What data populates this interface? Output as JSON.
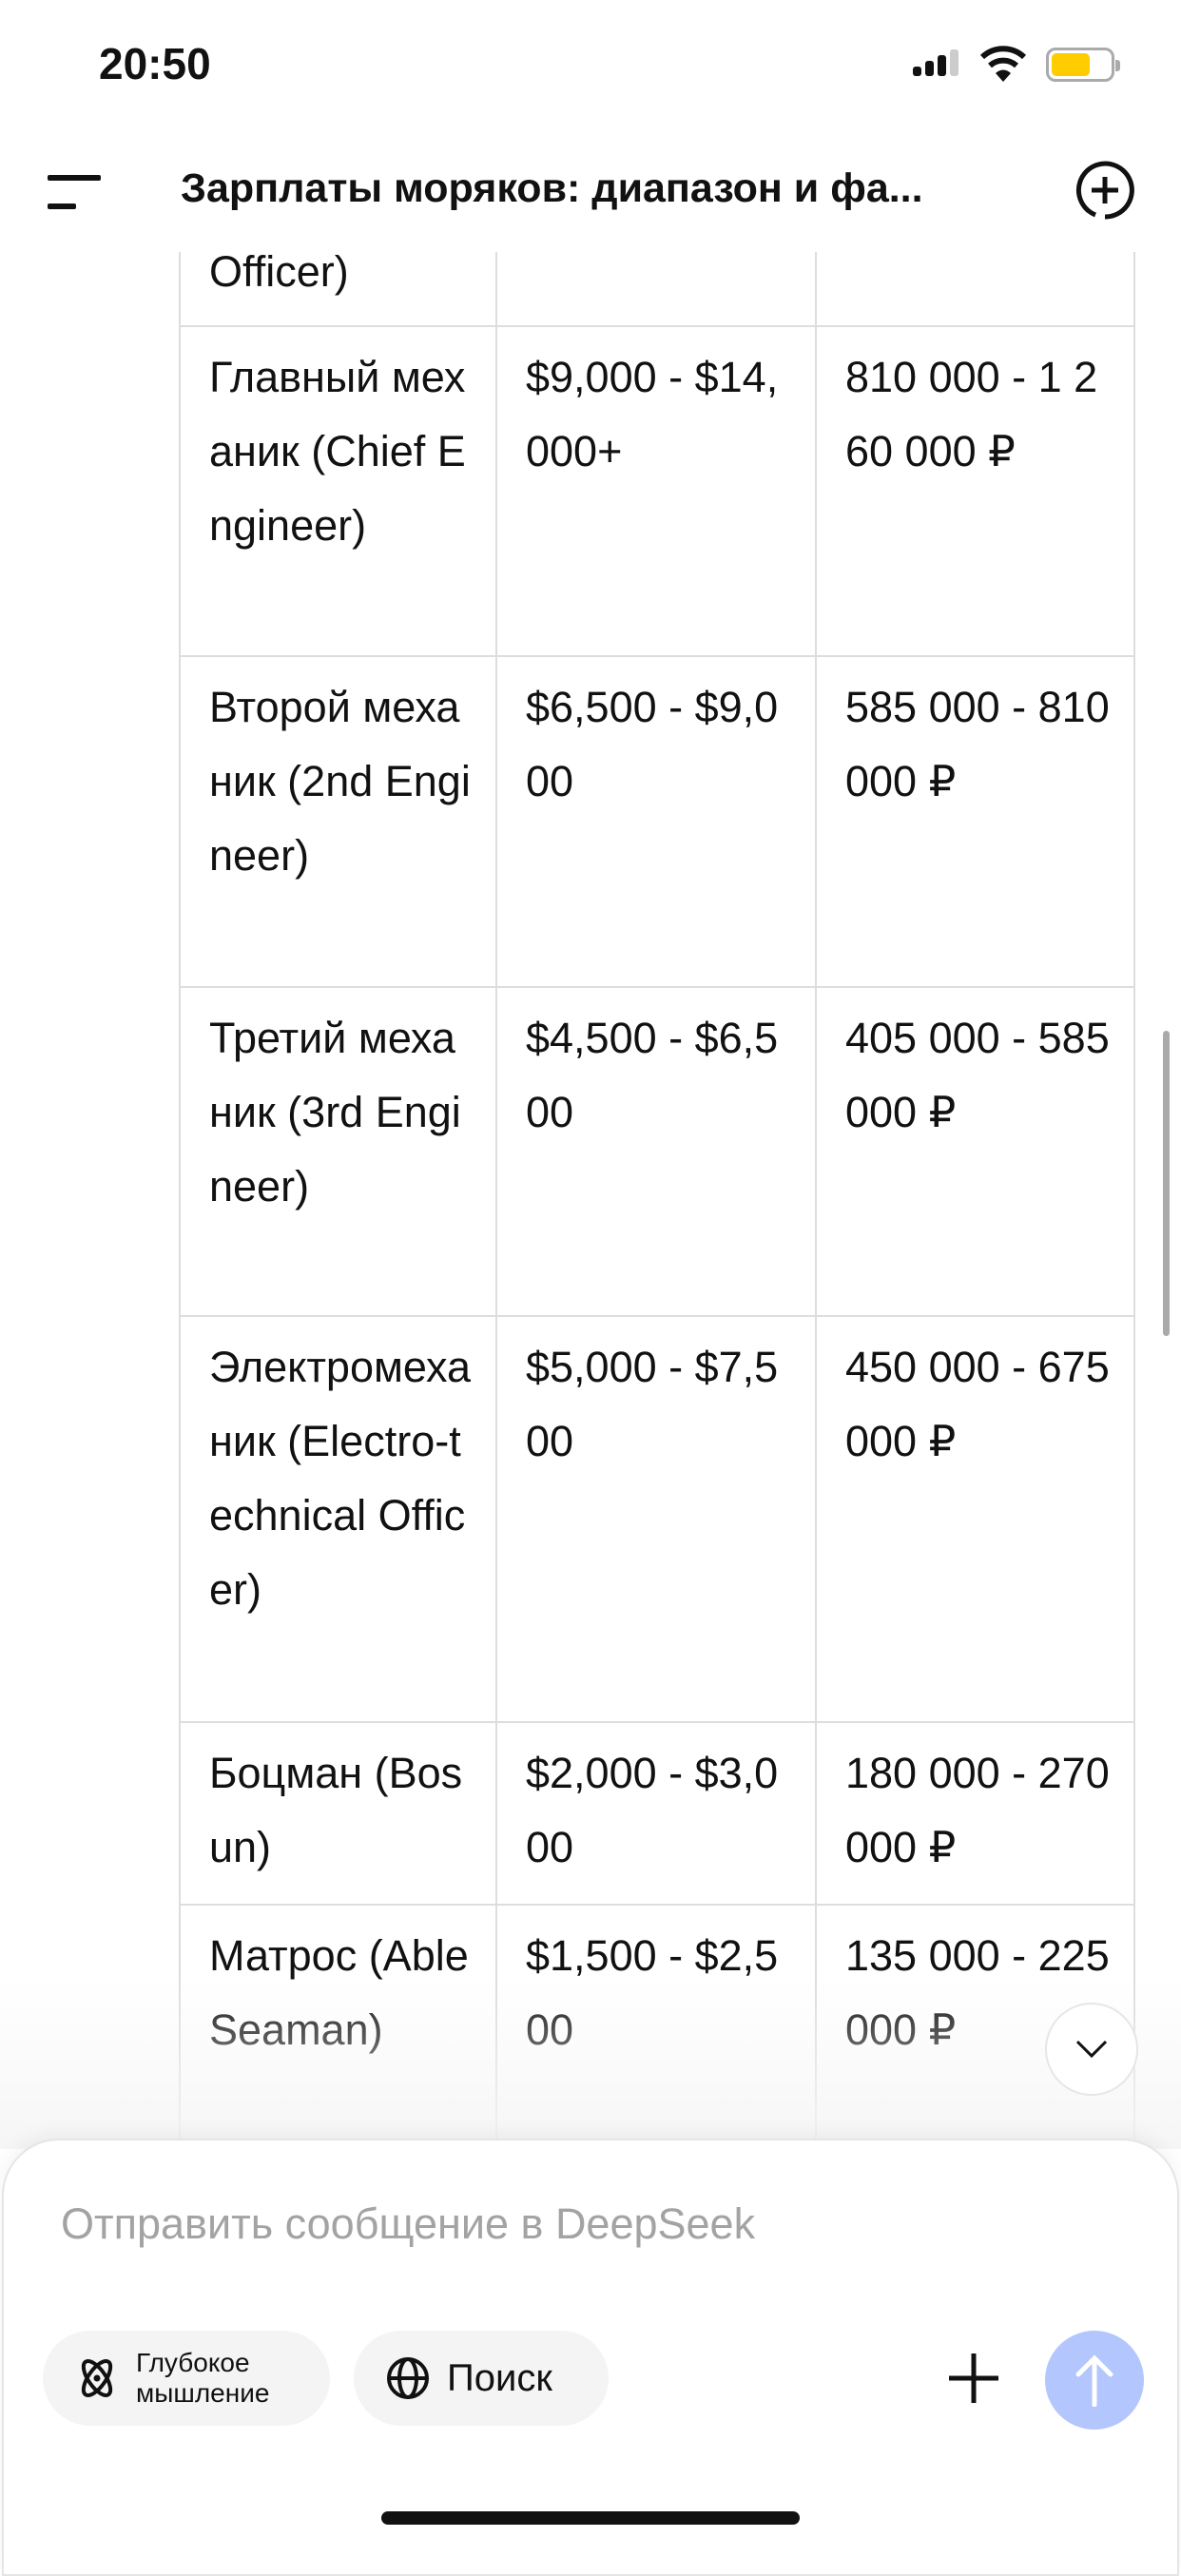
{
  "status_bar": {
    "time": "20:50",
    "battery_color": "#ffcc00"
  },
  "header": {
    "title": "Зарплаты моряков: диапазон и фа...",
    "menu_icon": "menu-icon",
    "new_chat_icon": "plus-circle-icon"
  },
  "table": {
    "partial_row": [
      "Officer)",
      "",
      ""
    ],
    "rows": [
      [
        "Главный механик (Chief Engineer)",
        "$9,000 - $14,000+",
        "810 000 - 1 260 000 ₽"
      ],
      [
        "Второй механик (2nd Engineer)",
        "$6,500 - $9,000",
        "585 000 - 810 000 ₽"
      ],
      [
        "Третий механик (3rd Engineer)",
        "$4,500 - $6,500",
        "405 000 - 585 000 ₽"
      ],
      [
        "Электромеханик (Electro-technical Officer)",
        "$5,000 - $7,500",
        "450 000 - 675 000 ₽"
      ],
      [
        "Боцман (Bosun)",
        "$2,000 - $3,000",
        "180 000 - 270 000 ₽"
      ],
      [
        "Матрос (Able Seaman)",
        "$1,500 - $2,500",
        "135 000 - 225 000 ₽"
      ]
    ]
  },
  "composer": {
    "placeholder": "Отправить сообщение в DeepSeek",
    "deep_think_label": "Глубокое мышление",
    "search_label": "Поиск",
    "send_color": "#b3c6fd"
  }
}
